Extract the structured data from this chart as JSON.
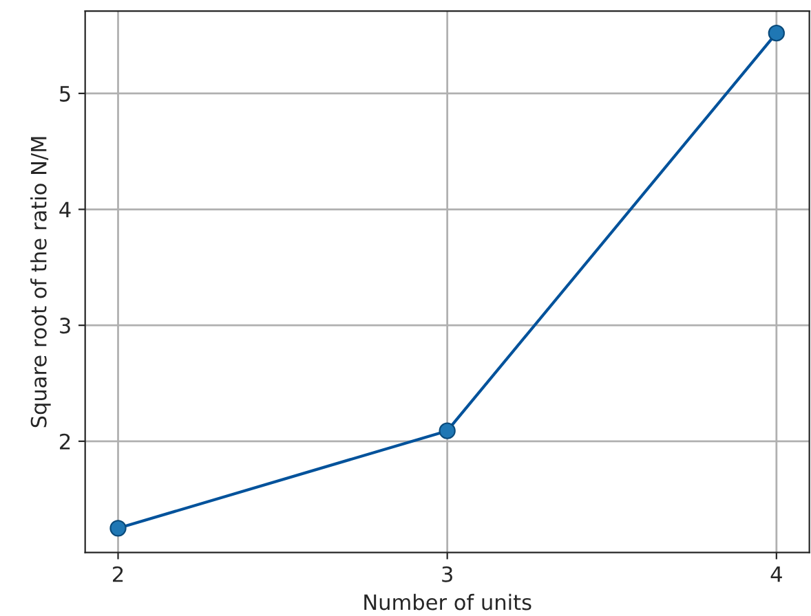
{
  "chart_data": {
    "type": "line",
    "xlabel": "Number of units",
    "ylabel": "Square root of the ratio N/M",
    "x": [
      2,
      3,
      4
    ],
    "series": [
      {
        "color": "#00529b",
        "values": [
          1.25,
          2.09,
          5.52
        ]
      }
    ],
    "xlim": [
      1.9,
      4.1
    ],
    "xticks": [
      2,
      3,
      4
    ],
    "ylim": [
      1.04,
      5.71
    ],
    "yticks": [
      2,
      3,
      4,
      5
    ],
    "grid": true,
    "marker": "circle",
    "line_style": "solid"
  }
}
